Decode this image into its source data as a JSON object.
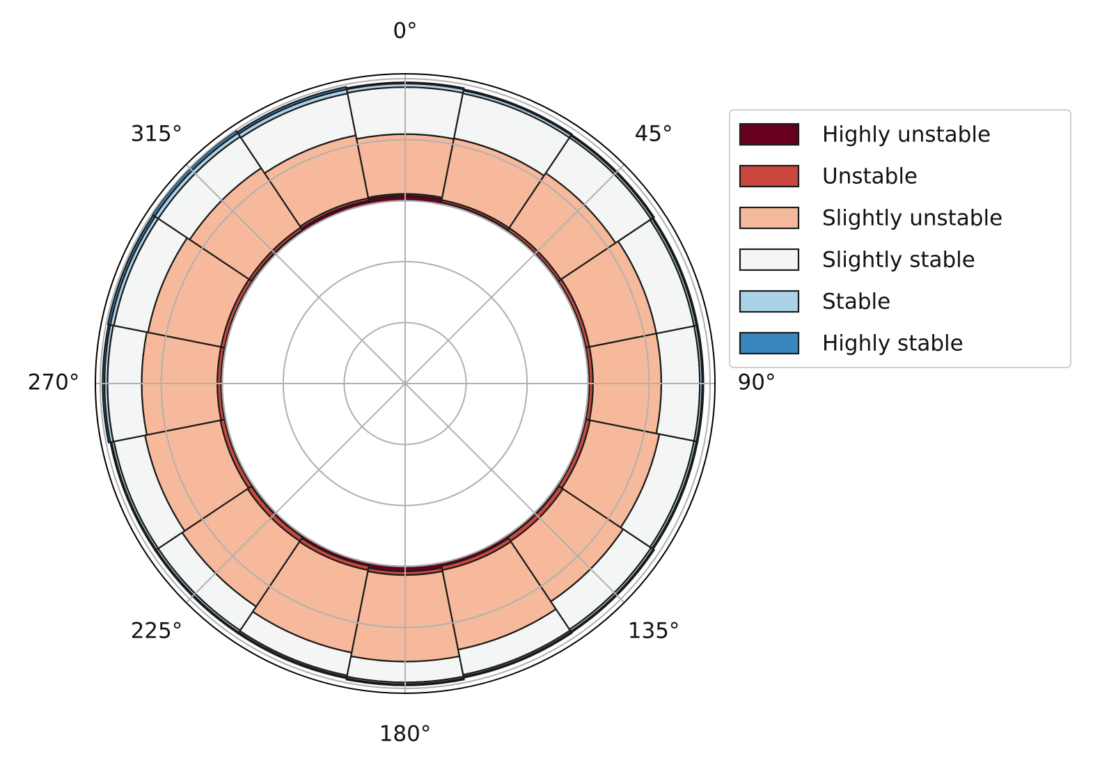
{
  "chart_data": {
    "type": "polar_stacked_bar",
    "x": [
      0,
      22.5,
      45,
      67.5,
      90,
      112.5,
      135,
      157.5,
      180,
      202.5,
      225,
      247.5,
      270,
      292.5,
      315,
      337.5
    ],
    "bottom": 3,
    "ylim": [
      0,
      5.08
    ],
    "yticks": [
      1,
      2,
      3,
      4,
      5
    ],
    "xticks": [
      {
        "value": 0,
        "label": "0°"
      },
      {
        "value": 45,
        "label": "45°"
      },
      {
        "value": 90,
        "label": "90°"
      },
      {
        "value": 135,
        "label": "135°"
      },
      {
        "value": 180,
        "label": "180°"
      },
      {
        "value": 225,
        "label": "225°"
      },
      {
        "value": 270,
        "label": "270°"
      },
      {
        "value": 315,
        "label": "315°"
      }
    ],
    "grid": true,
    "legend": "upper right outside",
    "series": [
      {
        "name": "Highly unstable",
        "color": "#67001f",
        "values": [
          0.08,
          0.03,
          0.02,
          0.02,
          0.02,
          0.02,
          0.03,
          0.05,
          0.08,
          0.05,
          0.03,
          0.02,
          0.02,
          0.02,
          0.03,
          0.06
        ]
      },
      {
        "name": "Unstable",
        "color": "#c9473f",
        "values": [
          0.03,
          0.04,
          0.05,
          0.06,
          0.06,
          0.07,
          0.08,
          0.07,
          0.06,
          0.07,
          0.08,
          0.07,
          0.06,
          0.06,
          0.05,
          0.04
        ]
      },
      {
        "name": "Slightly unstable",
        "color": "#f6b99b",
        "values": [
          0.98,
          1.03,
          1.08,
          1.12,
          1.12,
          1.16,
          1.19,
          1.33,
          1.42,
          1.38,
          1.29,
          1.26,
          1.24,
          1.22,
          1.17,
          1.05
        ]
      },
      {
        "name": "Slightly stable",
        "color": "#f4f6f5",
        "values": [
          0.77,
          0.75,
          0.7,
          0.63,
          0.63,
          0.58,
          0.55,
          0.42,
          0.34,
          0.38,
          0.47,
          0.52,
          0.56,
          0.57,
          0.62,
          0.7
        ]
      },
      {
        "name": "Stable",
        "color": "#abd2e7",
        "values": [
          0.06,
          0.05,
          0.04,
          0.04,
          0.04,
          0.04,
          0.04,
          0.03,
          0.03,
          0.03,
          0.04,
          0.04,
          0.05,
          0.06,
          0.07,
          0.07
        ]
      },
      {
        "name": "Highly stable",
        "color": "#3a87bf",
        "values": [
          0.02,
          0.02,
          0.02,
          0.02,
          0.02,
          0.02,
          0.02,
          0.02,
          0.02,
          0.02,
          0.02,
          0.02,
          0.03,
          0.04,
          0.05,
          0.04
        ]
      }
    ]
  }
}
